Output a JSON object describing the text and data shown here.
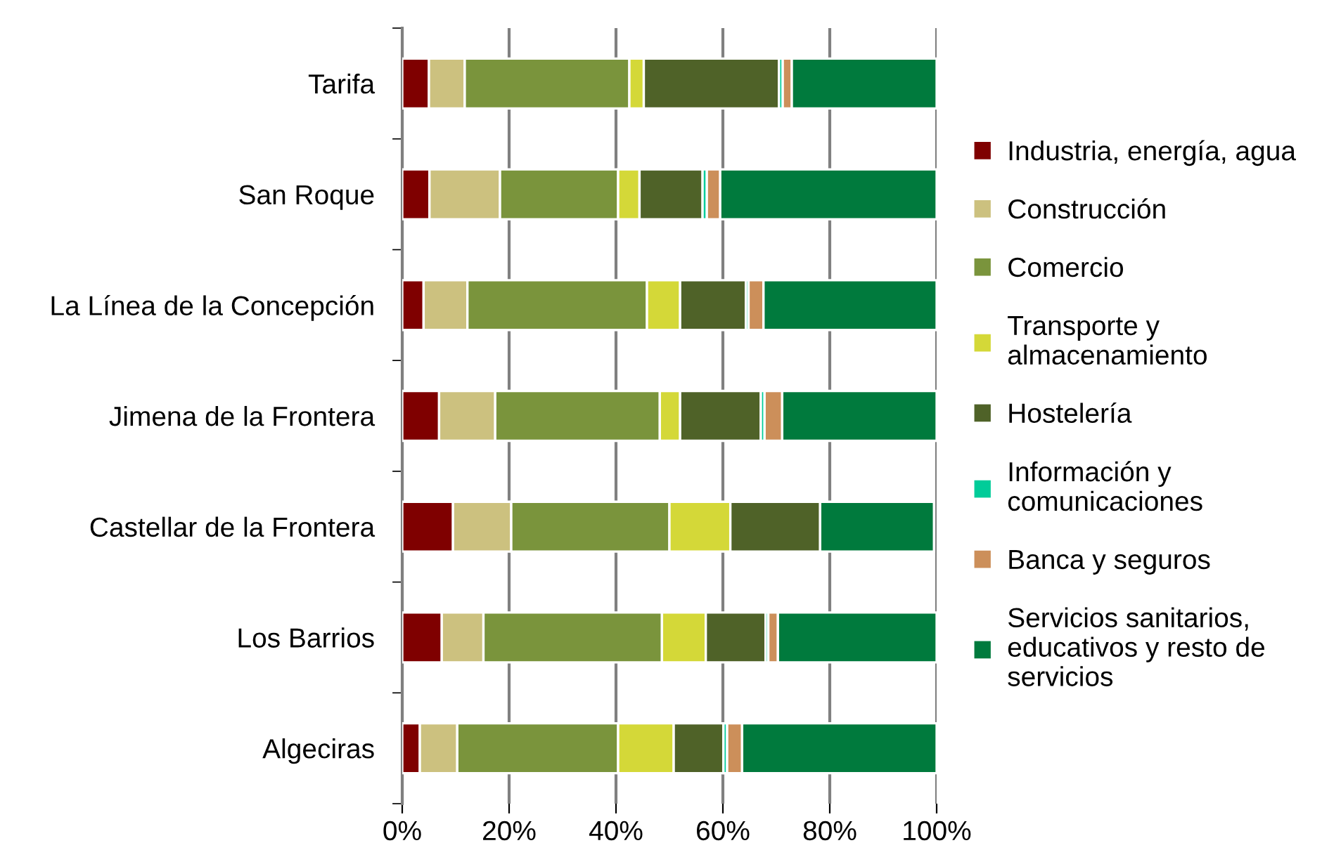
{
  "chart_data": {
    "type": "bar",
    "orientation": "horizontal",
    "stacked": true,
    "categories": [
      "Tarifa",
      "San Roque",
      "La Línea de la Concepción",
      "Jimena de la Frontera",
      "Castellar de la Frontera",
      "Los Barrios",
      "Algeciras"
    ],
    "series": [
      {
        "name": "Industria, energía, agua",
        "color": "#7f0000",
        "values": [
          5.0,
          5.1,
          4.0,
          6.9,
          9.5,
          7.4,
          3.3
        ]
      },
      {
        "name": "Construcción",
        "color": "#ccc17f",
        "values": [
          6.7,
          13.2,
          8.2,
          10.5,
          10.9,
          7.8,
          7.0
        ]
      },
      {
        "name": "Comercio",
        "color": "#7a943c",
        "values": [
          30.8,
          22.1,
          33.6,
          30.8,
          29.6,
          33.4,
          30.1
        ]
      },
      {
        "name": "Transporte y\nalmacenamiento",
        "color": "#d4d838",
        "values": [
          2.7,
          4.0,
          6.2,
          3.8,
          11.4,
          8.2,
          10.4
        ]
      },
      {
        "name": "Hostelería",
        "color": "#4f6228",
        "values": [
          25.3,
          11.8,
          12.3,
          15.1,
          16.8,
          11.2,
          9.3
        ]
      },
      {
        "name": "Información y\ncomunicaciones",
        "color": "#00cc99",
        "values": [
          0.7,
          0.8,
          0.5,
          0.7,
          null,
          0.5,
          0.7
        ]
      },
      {
        "name": "Banca y seguros",
        "color": "#cc8f5a",
        "values": [
          1.7,
          2.5,
          2.8,
          3.3,
          null,
          1.8,
          2.8
        ]
      },
      {
        "name": "Servicios sanitarios,\neducativos y resto de\nservicios",
        "color": "#007a3d",
        "values": [
          27.1,
          40.5,
          32.4,
          28.9,
          21.3,
          29.7,
          36.4
        ]
      }
    ],
    "xlim": [
      0,
      100
    ],
    "xticks": [
      {
        "value": 0,
        "label": "0%"
      },
      {
        "value": 20,
        "label": "20%"
      },
      {
        "value": 40,
        "label": "40%"
      },
      {
        "value": 60,
        "label": "60%"
      },
      {
        "value": 80,
        "label": "80%"
      },
      {
        "value": 100,
        "label": "100%"
      }
    ],
    "grid": "x",
    "legend": "right"
  }
}
